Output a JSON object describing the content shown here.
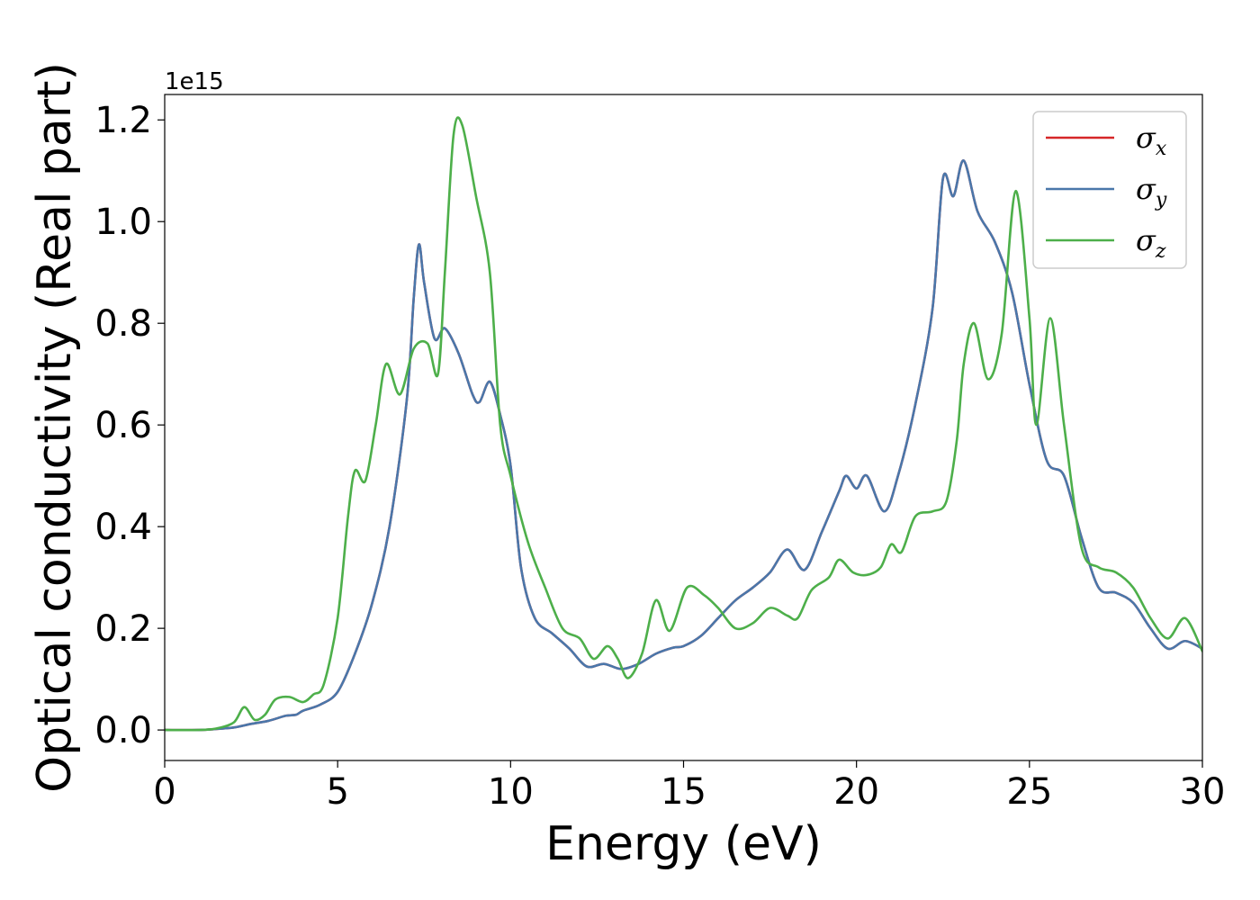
{
  "chart_data": {
    "type": "line",
    "xlabel": "Energy (eV)",
    "ylabel": "Optical conductivity (Real part)",
    "y_offset_label": "1e15",
    "y_multiplier": 1000000000000000.0,
    "xlim": [
      0,
      30
    ],
    "ylim": [
      -0.06,
      1.25
    ],
    "x_ticks": [
      0,
      5,
      10,
      15,
      20,
      25,
      30
    ],
    "x_tick_labels": [
      "0",
      "5",
      "10",
      "15",
      "20",
      "25",
      "30"
    ],
    "y_ticks": [
      0.0,
      0.2,
      0.4,
      0.6,
      0.8,
      1.0,
      1.2
    ],
    "y_tick_labels": [
      "0.0",
      "0.2",
      "0.4",
      "0.6",
      "0.8",
      "1.0",
      "1.2"
    ],
    "grid": false,
    "legend_position": "top-right",
    "series": [
      {
        "name": "σx",
        "legend_symbol": "σ",
        "legend_sub": "x",
        "color": "#d62728",
        "points": [
          [
            0,
            0
          ],
          [
            1,
            0
          ],
          [
            1.5,
            0.002
          ],
          [
            2,
            0.005
          ],
          [
            2.5,
            0.012
          ],
          [
            3,
            0.018
          ],
          [
            3.5,
            0.028
          ],
          [
            3.8,
            0.03
          ],
          [
            4,
            0.038
          ],
          [
            4.5,
            0.05
          ],
          [
            5,
            0.075
          ],
          [
            5.5,
            0.15
          ],
          [
            6,
            0.25
          ],
          [
            6.5,
            0.4
          ],
          [
            7,
            0.65
          ],
          [
            7.2,
            0.85
          ],
          [
            7.35,
            0.955
          ],
          [
            7.5,
            0.88
          ],
          [
            7.8,
            0.77
          ],
          [
            8.1,
            0.79
          ],
          [
            8.5,
            0.74
          ],
          [
            8.9,
            0.66
          ],
          [
            9.1,
            0.645
          ],
          [
            9.4,
            0.685
          ],
          [
            9.7,
            0.62
          ],
          [
            10,
            0.52
          ],
          [
            10.3,
            0.32
          ],
          [
            10.7,
            0.22
          ],
          [
            11.2,
            0.19
          ],
          [
            11.7,
            0.16
          ],
          [
            12.2,
            0.125
          ],
          [
            12.7,
            0.13
          ],
          [
            13.2,
            0.12
          ],
          [
            13.7,
            0.13
          ],
          [
            14.2,
            0.15
          ],
          [
            14.7,
            0.162
          ],
          [
            15,
            0.165
          ],
          [
            15.5,
            0.185
          ],
          [
            16,
            0.22
          ],
          [
            16.5,
            0.255
          ],
          [
            17,
            0.28
          ],
          [
            17.5,
            0.31
          ],
          [
            18,
            0.355
          ],
          [
            18.5,
            0.315
          ],
          [
            19,
            0.39
          ],
          [
            19.5,
            0.47
          ],
          [
            19.7,
            0.5
          ],
          [
            20,
            0.475
          ],
          [
            20.3,
            0.5
          ],
          [
            20.8,
            0.43
          ],
          [
            21.2,
            0.5
          ],
          [
            21.7,
            0.64
          ],
          [
            22.2,
            0.83
          ],
          [
            22.5,
            1.085
          ],
          [
            22.8,
            1.05
          ],
          [
            23.1,
            1.12
          ],
          [
            23.5,
            1.02
          ],
          [
            24,
            0.96
          ],
          [
            24.5,
            0.86
          ],
          [
            25,
            0.68
          ],
          [
            25.5,
            0.53
          ],
          [
            26,
            0.5
          ],
          [
            26.5,
            0.38
          ],
          [
            27,
            0.28
          ],
          [
            27.5,
            0.27
          ],
          [
            28,
            0.25
          ],
          [
            28.5,
            0.2
          ],
          [
            29,
            0.16
          ],
          [
            29.5,
            0.175
          ],
          [
            30,
            0.16
          ]
        ]
      },
      {
        "name": "σy",
        "legend_symbol": "σ",
        "legend_sub": "y",
        "color": "#4a77aa",
        "points": [
          [
            0,
            0
          ],
          [
            1,
            0
          ],
          [
            1.5,
            0.002
          ],
          [
            2,
            0.005
          ],
          [
            2.5,
            0.012
          ],
          [
            3,
            0.018
          ],
          [
            3.5,
            0.028
          ],
          [
            3.8,
            0.03
          ],
          [
            4,
            0.038
          ],
          [
            4.5,
            0.05
          ],
          [
            5,
            0.075
          ],
          [
            5.5,
            0.15
          ],
          [
            6,
            0.25
          ],
          [
            6.5,
            0.4
          ],
          [
            7,
            0.65
          ],
          [
            7.2,
            0.85
          ],
          [
            7.35,
            0.955
          ],
          [
            7.5,
            0.88
          ],
          [
            7.8,
            0.77
          ],
          [
            8.1,
            0.79
          ],
          [
            8.5,
            0.74
          ],
          [
            8.9,
            0.66
          ],
          [
            9.1,
            0.645
          ],
          [
            9.4,
            0.685
          ],
          [
            9.7,
            0.62
          ],
          [
            10,
            0.52
          ],
          [
            10.3,
            0.32
          ],
          [
            10.7,
            0.22
          ],
          [
            11.2,
            0.19
          ],
          [
            11.7,
            0.16
          ],
          [
            12.2,
            0.125
          ],
          [
            12.7,
            0.13
          ],
          [
            13.2,
            0.12
          ],
          [
            13.7,
            0.13
          ],
          [
            14.2,
            0.15
          ],
          [
            14.7,
            0.162
          ],
          [
            15,
            0.165
          ],
          [
            15.5,
            0.185
          ],
          [
            16,
            0.22
          ],
          [
            16.5,
            0.255
          ],
          [
            17,
            0.28
          ],
          [
            17.5,
            0.31
          ],
          [
            18,
            0.355
          ],
          [
            18.5,
            0.315
          ],
          [
            19,
            0.39
          ],
          [
            19.5,
            0.47
          ],
          [
            19.7,
            0.5
          ],
          [
            20,
            0.475
          ],
          [
            20.3,
            0.5
          ],
          [
            20.8,
            0.43
          ],
          [
            21.2,
            0.5
          ],
          [
            21.7,
            0.64
          ],
          [
            22.2,
            0.83
          ],
          [
            22.5,
            1.085
          ],
          [
            22.8,
            1.05
          ],
          [
            23.1,
            1.12
          ],
          [
            23.5,
            1.02
          ],
          [
            24,
            0.96
          ],
          [
            24.5,
            0.86
          ],
          [
            25,
            0.68
          ],
          [
            25.5,
            0.53
          ],
          [
            26,
            0.5
          ],
          [
            26.5,
            0.38
          ],
          [
            27,
            0.28
          ],
          [
            27.5,
            0.27
          ],
          [
            28,
            0.25
          ],
          [
            28.5,
            0.2
          ],
          [
            29,
            0.16
          ],
          [
            29.5,
            0.175
          ],
          [
            30,
            0.16
          ]
        ]
      },
      {
        "name": "σz",
        "legend_symbol": "σ",
        "legend_sub": "z",
        "color": "#4daf4a",
        "points": [
          [
            0,
            0
          ],
          [
            1,
            0
          ],
          [
            1.5,
            0.003
          ],
          [
            2,
            0.015
          ],
          [
            2.3,
            0.045
          ],
          [
            2.6,
            0.02
          ],
          [
            2.9,
            0.03
          ],
          [
            3.2,
            0.06
          ],
          [
            3.6,
            0.065
          ],
          [
            4,
            0.055
          ],
          [
            4.3,
            0.07
          ],
          [
            4.6,
            0.09
          ],
          [
            5,
            0.22
          ],
          [
            5.3,
            0.42
          ],
          [
            5.5,
            0.51
          ],
          [
            5.8,
            0.49
          ],
          [
            6.1,
            0.6
          ],
          [
            6.4,
            0.72
          ],
          [
            6.8,
            0.66
          ],
          [
            7.2,
            0.75
          ],
          [
            7.6,
            0.76
          ],
          [
            7.9,
            0.7
          ],
          [
            8.1,
            0.9
          ],
          [
            8.35,
            1.17
          ],
          [
            8.6,
            1.19
          ],
          [
            9,
            1.05
          ],
          [
            9.4,
            0.9
          ],
          [
            9.7,
            0.6
          ],
          [
            10,
            0.5
          ],
          [
            10.5,
            0.37
          ],
          [
            11,
            0.28
          ],
          [
            11.5,
            0.2
          ],
          [
            12,
            0.18
          ],
          [
            12.4,
            0.14
          ],
          [
            12.8,
            0.165
          ],
          [
            13.1,
            0.14
          ],
          [
            13.4,
            0.102
          ],
          [
            13.8,
            0.15
          ],
          [
            14.2,
            0.255
          ],
          [
            14.6,
            0.195
          ],
          [
            15.1,
            0.28
          ],
          [
            15.6,
            0.265
          ],
          [
            16,
            0.24
          ],
          [
            16.5,
            0.2
          ],
          [
            17,
            0.21
          ],
          [
            17.5,
            0.24
          ],
          [
            18,
            0.225
          ],
          [
            18.3,
            0.22
          ],
          [
            18.7,
            0.275
          ],
          [
            19.2,
            0.3
          ],
          [
            19.5,
            0.335
          ],
          [
            19.9,
            0.31
          ],
          [
            20.3,
            0.305
          ],
          [
            20.7,
            0.32
          ],
          [
            21,
            0.365
          ],
          [
            21.3,
            0.35
          ],
          [
            21.7,
            0.42
          ],
          [
            22.2,
            0.43
          ],
          [
            22.6,
            0.45
          ],
          [
            22.9,
            0.57
          ],
          [
            23.1,
            0.72
          ],
          [
            23.4,
            0.8
          ],
          [
            23.8,
            0.69
          ],
          [
            24.2,
            0.78
          ],
          [
            24.6,
            1.06
          ],
          [
            25,
            0.81
          ],
          [
            25.2,
            0.6
          ],
          [
            25.6,
            0.81
          ],
          [
            26,
            0.6
          ],
          [
            26.5,
            0.36
          ],
          [
            27,
            0.32
          ],
          [
            27.5,
            0.31
          ],
          [
            28,
            0.28
          ],
          [
            28.5,
            0.22
          ],
          [
            29,
            0.18
          ],
          [
            29.5,
            0.22
          ],
          [
            30,
            0.155
          ]
        ]
      }
    ]
  }
}
